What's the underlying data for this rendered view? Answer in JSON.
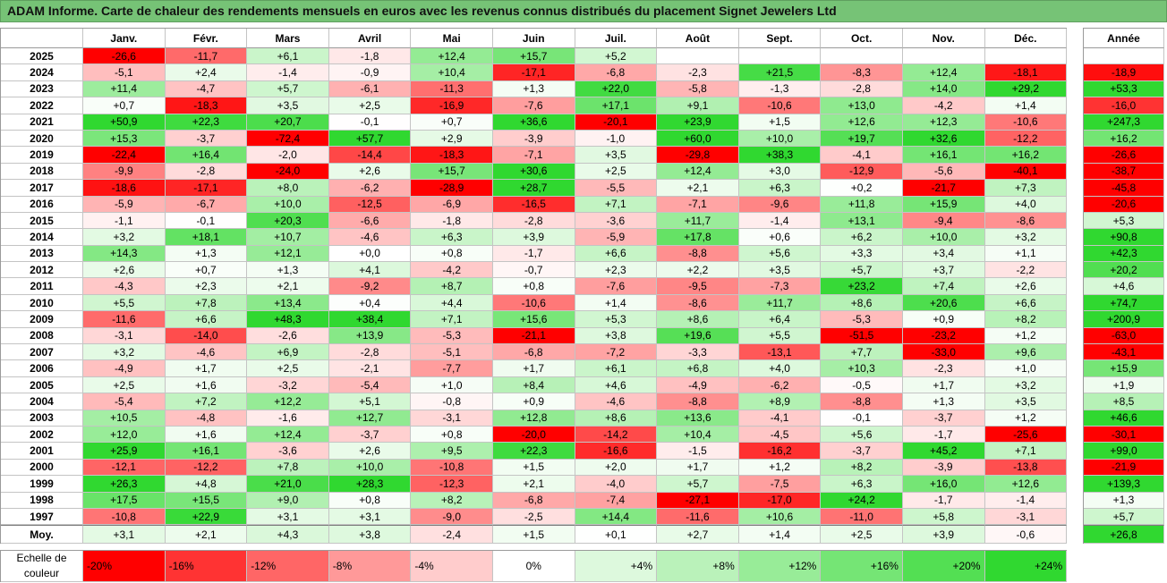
{
  "colors": {
    "title_bar": "#76c376",
    "neutral": "#ffffff",
    "negative": "#ff0000",
    "positive": "#30d830"
  },
  "chart_data": {
    "type": "heatmap",
    "title": "ADAM Informe. Carte de chaleur des rendements mensuels en euros avec les revenus connus distribués du placement Signet Jewelers Ltd",
    "columns": [
      "Janv.",
      "Févr.",
      "Mars",
      "Avril",
      "Mai",
      "Juin",
      "Juil.",
      "Août",
      "Sept.",
      "Oct.",
      "Nov.",
      "Déc."
    ],
    "annual_label": "Année",
    "rows": [
      {
        "label": "2025",
        "values": [
          "-26,6",
          "-11,7",
          "+6,1",
          "-1,8",
          "+12,4",
          "+15,7",
          "+5,2",
          null,
          null,
          null,
          null,
          null
        ],
        "annual": null
      },
      {
        "label": "2024",
        "values": [
          "-5,1",
          "+2,4",
          "-1,4",
          "-0,9",
          "+10,4",
          "-17,1",
          "-6,8",
          "-2,3",
          "+21,5",
          "-8,3",
          "+12,4",
          "-18,1"
        ],
        "annual": "-18,9"
      },
      {
        "label": "2023",
        "values": [
          "+11,4",
          "-4,7",
          "+5,7",
          "-6,1",
          "-11,3",
          "+1,3",
          "+22,0",
          "-5,8",
          "-1,3",
          "-2,8",
          "+14,0",
          "+29,2"
        ],
        "annual": "+53,3"
      },
      {
        "label": "2022",
        "values": [
          "+0,7",
          "-18,3",
          "+3,5",
          "+2,5",
          "-16,9",
          "-7,6",
          "+17,1",
          "+9,1",
          "-10,6",
          "+13,0",
          "-4,2",
          "+1,4"
        ],
        "annual": "-16,0"
      },
      {
        "label": "2021",
        "values": [
          "+50,9",
          "+22,3",
          "+20,7",
          "-0,1",
          "+0,7",
          "+36,6",
          "-20,1",
          "+23,9",
          "+1,5",
          "+12,6",
          "+12,3",
          "-10,6"
        ],
        "annual": "+247,3"
      },
      {
        "label": "2020",
        "values": [
          "+15,3",
          "-3,7",
          "-72,4",
          "+57,7",
          "+2,9",
          "-3,9",
          "-1,0",
          "+60,0",
          "+10,0",
          "+19,7",
          "+32,6",
          "-12,2"
        ],
        "annual": "+16,2"
      },
      {
        "label": "2019",
        "values": [
          "-22,4",
          "+16,4",
          "-2,0",
          "-14,4",
          "-18,3",
          "-7,1",
          "+3,5",
          "-29,8",
          "+38,3",
          "-4,1",
          "+16,1",
          "+16,2"
        ],
        "annual": "-26,6"
      },
      {
        "label": "2018",
        "values": [
          "-9,9",
          "-2,8",
          "-24,0",
          "+2,6",
          "+15,7",
          "+30,6",
          "+2,5",
          "+12,4",
          "+3,0",
          "-12,9",
          "-5,6",
          "-40,1"
        ],
        "annual": "-38,7"
      },
      {
        "label": "2017",
        "values": [
          "-18,6",
          "-17,1",
          "+8,0",
          "-6,2",
          "-28,9",
          "+28,7",
          "-5,5",
          "+2,1",
          "+6,3",
          "+0,2",
          "-21,7",
          "+7,3"
        ],
        "annual": "-45,8"
      },
      {
        "label": "2016",
        "values": [
          "-5,9",
          "-6,7",
          "+10,0",
          "-12,5",
          "-6,9",
          "-16,5",
          "+7,1",
          "-7,1",
          "-9,6",
          "+11,8",
          "+15,9",
          "+4,0"
        ],
        "annual": "-20,6"
      },
      {
        "label": "2015",
        "values": [
          "-1,1",
          "-0,1",
          "+20,3",
          "-6,6",
          "-1,8",
          "-2,8",
          "-3,6",
          "+11,7",
          "-1,4",
          "+13,1",
          "-9,4",
          "-8,6"
        ],
        "annual": "+5,3"
      },
      {
        "label": "2014",
        "values": [
          "+3,2",
          "+18,1",
          "+10,7",
          "-4,6",
          "+6,3",
          "+3,9",
          "-5,9",
          "+17,8",
          "+0,6",
          "+6,2",
          "+10,0",
          "+3,2"
        ],
        "annual": "+90,8"
      },
      {
        "label": "2013",
        "values": [
          "+14,3",
          "+1,3",
          "+12,1",
          "+0,0",
          "+0,8",
          "-1,7",
          "+6,6",
          "-8,8",
          "+5,6",
          "+3,3",
          "+3,4",
          "+1,1"
        ],
        "annual": "+42,3"
      },
      {
        "label": "2012",
        "values": [
          "+2,6",
          "+0,7",
          "+1,3",
          "+4,1",
          "-4,2",
          "-0,7",
          "+2,3",
          "+2,2",
          "+3,5",
          "+5,7",
          "+3,7",
          "-2,2"
        ],
        "annual": "+20,2"
      },
      {
        "label": "2011",
        "values": [
          "-4,3",
          "+2,3",
          "+2,1",
          "-9,2",
          "+8,7",
          "+0,8",
          "-7,6",
          "-9,5",
          "-7,3",
          "+23,2",
          "+7,4",
          "+2,6"
        ],
        "annual": "+4,6"
      },
      {
        "label": "2010",
        "values": [
          "+5,5",
          "+7,8",
          "+13,4",
          "+0,4",
          "+4,4",
          "-10,6",
          "+1,4",
          "-8,6",
          "+11,7",
          "+8,6",
          "+20,6",
          "+6,6"
        ],
        "annual": "+74,7"
      },
      {
        "label": "2009",
        "values": [
          "-11,6",
          "+6,6",
          "+48,3",
          "+38,4",
          "+7,1",
          "+15,6",
          "+5,3",
          "+8,6",
          "+6,4",
          "-5,3",
          "+0,9",
          "+8,2"
        ],
        "annual": "+200,9"
      },
      {
        "label": "2008",
        "values": [
          "-3,1",
          "-14,0",
          "-2,6",
          "+13,9",
          "-5,3",
          "-21,1",
          "+3,8",
          "+19,6",
          "+5,5",
          "-51,5",
          "-23,2",
          "+1,2"
        ],
        "annual": "-63,0"
      },
      {
        "label": "2007",
        "values": [
          "+3,2",
          "-4,6",
          "+6,9",
          "-2,8",
          "-5,1",
          "-6,8",
          "-7,2",
          "-3,3",
          "-13,1",
          "+7,7",
          "-33,0",
          "+9,6"
        ],
        "annual": "-43,1"
      },
      {
        "label": "2006",
        "values": [
          "-4,9",
          "+1,7",
          "+2,5",
          "-2,1",
          "-7,7",
          "+1,7",
          "+6,1",
          "+6,8",
          "+4,0",
          "+10,3",
          "-2,3",
          "+1,0"
        ],
        "annual": "+15,9"
      },
      {
        "label": "2005",
        "values": [
          "+2,5",
          "+1,6",
          "-3,2",
          "-5,4",
          "+1,0",
          "+8,4",
          "+4,6",
          "-4,9",
          "-6,2",
          "-0,5",
          "+1,7",
          "+3,2"
        ],
        "annual": "+1,9"
      },
      {
        "label": "2004",
        "values": [
          "-5,4",
          "+7,2",
          "+12,2",
          "+5,1",
          "-0,8",
          "+0,9",
          "-4,6",
          "-8,8",
          "+8,9",
          "-8,8",
          "+1,3",
          "+3,5"
        ],
        "annual": "+8,5"
      },
      {
        "label": "2003",
        "values": [
          "+10,5",
          "-4,8",
          "-1,6",
          "+12,7",
          "-3,1",
          "+12,8",
          "+8,6",
          "+13,6",
          "-4,1",
          "-0,1",
          "-3,7",
          "+1,2"
        ],
        "annual": "+46,6"
      },
      {
        "label": "2002",
        "values": [
          "+12,0",
          "+1,6",
          "+12,4",
          "-3,7",
          "+0,8",
          "-20,0",
          "-14,2",
          "+10,4",
          "-4,5",
          "+5,6",
          "-1,7",
          "-25,6"
        ],
        "annual": "-30,1"
      },
      {
        "label": "2001",
        "values": [
          "+25,9",
          "+16,1",
          "-3,6",
          "+2,6",
          "+9,5",
          "+22,3",
          "-16,6",
          "-1,5",
          "-16,2",
          "-3,7",
          "+45,2",
          "+7,1"
        ],
        "annual": "+99,0"
      },
      {
        "label": "2000",
        "values": [
          "-12,1",
          "-12,2",
          "+7,8",
          "+10,0",
          "-10,8",
          "+1,5",
          "+2,0",
          "+1,7",
          "+1,2",
          "+8,2",
          "-3,9",
          "-13,8"
        ],
        "annual": "-21,9"
      },
      {
        "label": "1999",
        "values": [
          "+26,3",
          "+4,8",
          "+21,0",
          "+28,3",
          "-12,3",
          "+2,1",
          "-4,0",
          "+5,7",
          "-7,5",
          "+6,3",
          "+16,0",
          "+12,6"
        ],
        "annual": "+139,3"
      },
      {
        "label": "1998",
        "values": [
          "+17,5",
          "+15,5",
          "+9,0",
          "+0,8",
          "+8,2",
          "-6,8",
          "-7,4",
          "-27,1",
          "-17,0",
          "+24,2",
          "-1,7",
          "-1,4"
        ],
        "annual": "+1,3"
      },
      {
        "label": "1997",
        "values": [
          "-10,8",
          "+22,9",
          "+3,1",
          "+3,1",
          "-9,0",
          "-2,5",
          "+14,4",
          "-11,6",
          "+10,6",
          "-11,0",
          "+5,8",
          "-3,1"
        ],
        "annual": "+5,7"
      }
    ],
    "average": {
      "label": "Moy.",
      "values": [
        "+3,1",
        "+2,1",
        "+4,3",
        "+3,8",
        "-2,4",
        "+1,5",
        "+0,1",
        "+2,7",
        "+1,4",
        "+2,5",
        "+3,9",
        "-0,6"
      ],
      "annual": "+26,8"
    },
    "scale": {
      "label": "Echelle de couleur",
      "min": -20,
      "max": 24,
      "ticks": [
        "-20%",
        "-16%",
        "-12%",
        "-8%",
        "-4%",
        "0%",
        "+4%",
        "+8%",
        "+12%",
        "+16%",
        "+20%",
        "+24%"
      ]
    }
  }
}
